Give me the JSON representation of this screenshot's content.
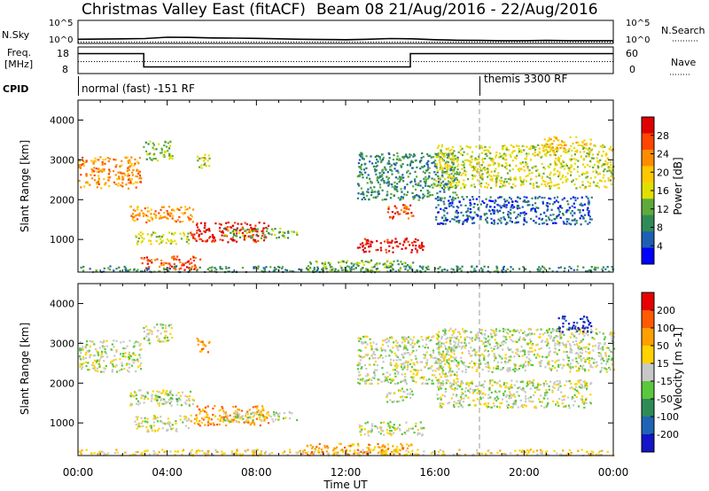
{
  "header": {
    "title": "Christmas Valley East (fitACF)",
    "beam_date": "Beam 08  21/Aug/2016 - 22/Aug/2016"
  },
  "colors": {
    "power_scale": [
      "#0000ff",
      "#1e5fb4",
      "#2e8b57",
      "#5faa3c",
      "#e0e000",
      "#ffc800",
      "#ff8c00",
      "#ff4500",
      "#e00000"
    ],
    "velocity_scale": [
      "#1414c8",
      "#1e64b4",
      "#2e8b57",
      "#5ac83c",
      "#c8c8c8",
      "#ffd200",
      "#ffa000",
      "#ff5a00",
      "#e60000"
    ],
    "ground_scatter": "#bebebe",
    "marker_line": "#999999"
  },
  "chart_data": [
    {
      "type": "line",
      "name": "noise",
      "left_label": "N.Sky",
      "right_label": "N.Search",
      "left_ticks": [
        "10^5",
        "10^0"
      ],
      "right_ticks": [
        "10^5",
        "10^0"
      ],
      "log_scale": true,
      "ylim": [
        0,
        5
      ],
      "series": [
        {
          "style": "solid",
          "x": [
            0,
            1,
            2,
            3,
            4,
            5,
            6,
            7,
            8,
            9,
            10,
            11,
            12,
            13,
            14,
            15,
            16,
            17,
            18,
            19,
            20,
            21,
            22,
            23,
            24
          ],
          "values": [
            0.9,
            0.95,
            1.0,
            1.05,
            1.35,
            1.3,
            1.2,
            1.15,
            1.1,
            1.0,
            0.9,
            0.85,
            0.8,
            0.9,
            1.05,
            1.0,
            0.8,
            0.7,
            0.65,
            0.6,
            0.6,
            0.65,
            0.6,
            0.6,
            0.6
          ]
        },
        {
          "style": "dotted",
          "x": [
            0,
            24
          ],
          "values": [
            0.3,
            0.3
          ]
        }
      ]
    },
    {
      "type": "line",
      "name": "frequency",
      "left_label_lines": [
        "Freq.",
        "[MHz]"
      ],
      "right_label": "Nave",
      "left_ticks": [
        "18",
        "8"
      ],
      "right_ticks": [
        "60",
        "0"
      ],
      "ylim": [
        8,
        18
      ],
      "series": [
        {
          "style": "solid",
          "x": [
            0,
            2.95,
            2.95,
            14.9,
            14.9,
            24
          ],
          "values": [
            15.5,
            15.5,
            10.5,
            10.5,
            15.5,
            15.5
          ]
        },
        {
          "style": "dotted",
          "x": [
            0,
            24
          ],
          "values": [
            12.5,
            12.5
          ]
        }
      ]
    },
    {
      "type": "table",
      "name": "cpid",
      "label": "CPID",
      "segments": [
        {
          "start": 0,
          "end": 18,
          "text": "normal (fast) -151 RF"
        },
        {
          "start": 18,
          "end": 24,
          "text": "themis 3300 RF"
        }
      ]
    },
    {
      "type": "heatmap",
      "name": "power",
      "xlabel": "",
      "ylabel": "Slant Range [km]",
      "colorbar_label": "Power [dB]",
      "colorbar_ticks": [
        "28",
        "24",
        "20",
        "16",
        "12",
        "8",
        "4"
      ],
      "xlim": [
        0,
        24
      ],
      "ylim": [
        180,
        4500
      ],
      "y_ticks": [
        "1000",
        "2000",
        "3000",
        "4000"
      ],
      "marker_time": 18,
      "regions": [
        {
          "t0": 0.0,
          "t1": 2.8,
          "r0": 2300,
          "r1": 3100,
          "level": 6
        },
        {
          "t0": 2.9,
          "t1": 4.2,
          "r0": 3000,
          "r1": 3500,
          "level": 3
        },
        {
          "t0": 2.3,
          "t1": 5.2,
          "r0": 1450,
          "r1": 1850,
          "level": 6
        },
        {
          "t0": 5.0,
          "t1": 8.5,
          "r0": 950,
          "r1": 1450,
          "level": 8
        },
        {
          "t0": 6.5,
          "t1": 9.8,
          "r0": 1050,
          "r1": 1300,
          "level": 3
        },
        {
          "t0": 2.5,
          "t1": 5.0,
          "r0": 900,
          "r1": 1200,
          "level": 4
        },
        {
          "t0": 2.8,
          "t1": 5.5,
          "r0": 250,
          "r1": 600,
          "level": 7
        },
        {
          "t0": 0.0,
          "t1": 24,
          "r0": 200,
          "r1": 350,
          "level": 2
        },
        {
          "t0": 10.2,
          "t1": 15.0,
          "r0": 200,
          "r1": 500,
          "level": 3
        },
        {
          "t0": 12.5,
          "t1": 15.5,
          "r0": 700,
          "r1": 1050,
          "level": 8
        },
        {
          "t0": 13.8,
          "t1": 15.0,
          "r0": 1550,
          "r1": 1900,
          "level": 7
        },
        {
          "t0": 12.5,
          "t1": 17.0,
          "r0": 2000,
          "r1": 3200,
          "level": 2
        },
        {
          "t0": 16.0,
          "t1": 24,
          "r0": 2300,
          "r1": 3400,
          "level": 4
        },
        {
          "t0": 20.8,
          "t1": 23.0,
          "r0": 3200,
          "r1": 3600,
          "level": 5
        },
        {
          "t0": 16.0,
          "t1": 23.0,
          "r0": 1400,
          "r1": 2100,
          "level": 1
        },
        {
          "t0": 5.3,
          "t1": 5.9,
          "r0": 2800,
          "r1": 3150,
          "level": 4
        }
      ]
    },
    {
      "type": "heatmap",
      "name": "velocity",
      "xlabel": "Time UT",
      "ylabel": "Slant Range [km]",
      "colorbar_label": "Velocity [m s-1]",
      "colorbar_ticks": [
        "200",
        "100",
        "50",
        "15",
        "-15",
        "-50",
        "-100",
        "-200"
      ],
      "x_ticks": [
        "00:00",
        "04:00",
        "08:00",
        "12:00",
        "16:00",
        "20:00",
        "00:00"
      ],
      "xlim": [
        0,
        24
      ],
      "ylim": [
        180,
        4500
      ],
      "y_ticks": [
        "1000",
        "2000",
        "3000",
        "4000"
      ],
      "marker_time": 18,
      "regions": [
        {
          "t0": 0.0,
          "t1": 2.8,
          "r0": 2300,
          "r1": 3100,
          "level": 4
        },
        {
          "t0": 2.9,
          "t1": 4.2,
          "r0": 3000,
          "r1": 3500,
          "level": 4
        },
        {
          "t0": 2.3,
          "t1": 5.2,
          "r0": 1450,
          "r1": 1850,
          "level": 4
        },
        {
          "t0": 5.0,
          "t1": 8.5,
          "r0": 950,
          "r1": 1450,
          "level": 6
        },
        {
          "t0": 6.5,
          "t1": 9.8,
          "r0": 1050,
          "r1": 1300,
          "level": 4
        },
        {
          "t0": 2.5,
          "t1": 5.0,
          "r0": 800,
          "r1": 1200,
          "level": 4
        },
        {
          "t0": 3.5,
          "t1": 4.5,
          "r0": 1550,
          "r1": 1750,
          "level": 3
        },
        {
          "t0": 0.0,
          "t1": 24,
          "r0": 200,
          "r1": 350,
          "level": 5
        },
        {
          "t0": 10.2,
          "t1": 15.0,
          "r0": 200,
          "r1": 500,
          "level": 6
        },
        {
          "t0": 12.5,
          "t1": 15.5,
          "r0": 700,
          "r1": 1050,
          "level": 4
        },
        {
          "t0": 13.8,
          "t1": 15.0,
          "r0": 1550,
          "r1": 1900,
          "level": 4
        },
        {
          "t0": 12.5,
          "t1": 17.0,
          "r0": 2000,
          "r1": 3200,
          "level": 4
        },
        {
          "t0": 16.0,
          "t1": 24,
          "r0": 2300,
          "r1": 3400,
          "level": 4
        },
        {
          "t0": 21.5,
          "t1": 23.0,
          "r0": 3300,
          "r1": 3700,
          "level": 0
        },
        {
          "t0": 16.0,
          "t1": 23.0,
          "r0": 1400,
          "r1": 2100,
          "level": 4
        },
        {
          "t0": 5.3,
          "t1": 5.9,
          "r0": 2800,
          "r1": 3150,
          "level": 6
        }
      ]
    }
  ]
}
